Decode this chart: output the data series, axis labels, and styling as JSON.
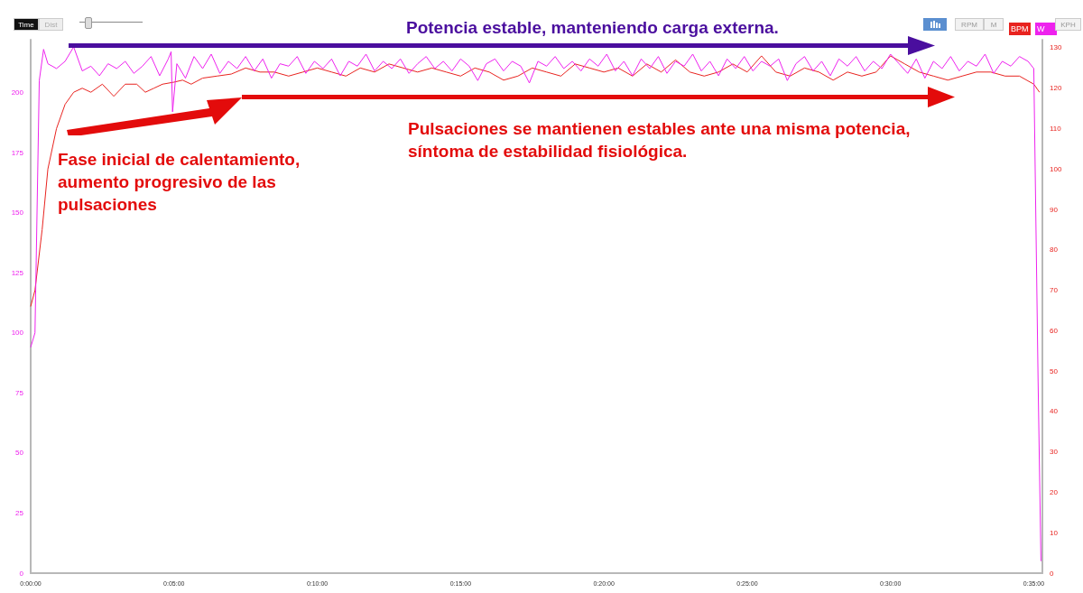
{
  "chart_data": {
    "type": "line",
    "legend": "top right",
    "xlim": [
      0,
      35.3
    ],
    "xticks": [
      {
        "value": 0,
        "label": "0:00:00"
      },
      {
        "value": 5,
        "label": "0:05:00"
      },
      {
        "value": 10,
        "label": "0:10:00"
      },
      {
        "value": 15,
        "label": "0:15:00"
      },
      {
        "value": 20,
        "label": "0:20:00"
      },
      {
        "value": 25,
        "label": "0:25:00"
      },
      {
        "value": 30,
        "label": "0:30:00"
      },
      {
        "value": 35,
        "label": "0:35:00"
      }
    ],
    "ylim": [
      0,
      222
    ],
    "yticks": [
      0,
      25,
      50,
      75,
      100,
      125,
      150,
      175,
      200
    ],
    "y2lim": [
      0,
      132
    ],
    "y2ticks": [
      0,
      10,
      20,
      30,
      40,
      50,
      60,
      70,
      80,
      90,
      100,
      110,
      120,
      130
    ],
    "series": [
      {
        "name": "BPM",
        "color": "#e8231f",
        "axis": "y2",
        "x": [
          0,
          0.15,
          0.4,
          0.6,
          0.9,
          1.2,
          1.5,
          1.8,
          2.1,
          2.5,
          2.9,
          3.3,
          3.7,
          4.0,
          4.3,
          4.6,
          5.0,
          5.3,
          5.6,
          6.0,
          6.5,
          7.0,
          7.5,
          8.0,
          8.5,
          9.0,
          9.5,
          10,
          10.5,
          11,
          11.5,
          12,
          12.5,
          13,
          13.5,
          14,
          14.5,
          15,
          15.5,
          16,
          16.5,
          17,
          17.5,
          18,
          18.5,
          19,
          19.5,
          20,
          20.5,
          21,
          21.5,
          22,
          22.5,
          23,
          23.5,
          24,
          24.5,
          25,
          25.5,
          26,
          26.5,
          27,
          27.5,
          28,
          28.5,
          29,
          29.5,
          30,
          30.5,
          31,
          31.5,
          32,
          32.5,
          33,
          33.5,
          34,
          34.5,
          35,
          35.2
        ],
        "values": [
          66,
          70,
          85,
          100,
          110,
          116,
          119,
          120,
          119,
          121,
          118,
          121,
          121,
          119,
          120,
          121,
          121.5,
          122,
          121,
          122.5,
          123,
          123.5,
          125,
          124,
          124,
          123,
          124,
          125,
          124,
          123,
          125,
          124,
          126,
          125,
          124,
          125,
          124,
          123,
          125,
          124,
          122,
          123,
          125,
          124,
          123,
          126,
          125,
          124,
          125,
          123,
          126,
          124,
          127,
          124,
          123,
          124,
          126,
          124,
          128,
          124,
          123,
          125,
          124,
          122,
          124,
          123,
          124,
          128,
          126,
          124,
          123,
          122,
          123,
          124,
          124,
          123,
          123,
          121,
          119
        ]
      },
      {
        "name": "W",
        "color": "#ee22ee",
        "x": [
          0,
          0.15,
          0.3,
          0.45,
          0.6,
          0.9,
          1.2,
          1.5,
          1.8,
          2.1,
          2.4,
          2.7,
          3.0,
          3.3,
          3.6,
          3.9,
          4.2,
          4.5,
          4.8,
          4.9,
          4.95,
          5.1,
          5.4,
          5.7,
          6.0,
          6.3,
          6.6,
          6.9,
          7.2,
          7.5,
          7.8,
          8.1,
          8.4,
          8.7,
          9.0,
          9.3,
          9.6,
          9.9,
          10.2,
          10.5,
          10.8,
          11.1,
          11.4,
          11.7,
          12.0,
          12.3,
          12.6,
          12.9,
          13.2,
          13.5,
          13.8,
          14.1,
          14.4,
          14.7,
          15.0,
          15.3,
          15.6,
          15.9,
          16.2,
          16.5,
          16.8,
          17.1,
          17.4,
          17.7,
          18.0,
          18.3,
          18.6,
          18.9,
          19.2,
          19.5,
          19.8,
          20.1,
          20.4,
          20.7,
          21.0,
          21.3,
          21.6,
          21.9,
          22.2,
          22.5,
          22.8,
          23.1,
          23.4,
          23.7,
          24.0,
          24.3,
          24.6,
          24.9,
          25.2,
          25.5,
          25.8,
          26.1,
          26.4,
          26.7,
          27.0,
          27.3,
          27.6,
          27.9,
          28.2,
          28.5,
          28.8,
          29.1,
          29.4,
          29.7,
          30.0,
          30.3,
          30.6,
          30.9,
          31.2,
          31.5,
          31.8,
          32.1,
          32.4,
          32.7,
          33.0,
          33.3,
          33.6,
          33.9,
          34.2,
          34.5,
          34.8,
          35.0,
          35.15,
          35.25
        ],
        "values": [
          94,
          100,
          205,
          218,
          212,
          210,
          213,
          219,
          209,
          211,
          207,
          212,
          210,
          213,
          208,
          211,
          215,
          207,
          214,
          217,
          192,
          212,
          206,
          215,
          210,
          216,
          208,
          213,
          210,
          215,
          209,
          214,
          206,
          212,
          211,
          215,
          208,
          213,
          210,
          214,
          207,
          213,
          211,
          216,
          209,
          213,
          210,
          214,
          208,
          212,
          215,
          210,
          213,
          209,
          214,
          211,
          205,
          212,
          214,
          209,
          213,
          211,
          204,
          213,
          211,
          215,
          210,
          213,
          209,
          214,
          211,
          216,
          209,
          213,
          207,
          214,
          210,
          215,
          208,
          213,
          211,
          216,
          209,
          213,
          207,
          214,
          210,
          215,
          209,
          213,
          211,
          214,
          205,
          212,
          215,
          209,
          213,
          207,
          214,
          211,
          215,
          209,
          213,
          210,
          216,
          212,
          208,
          214,
          206,
          213,
          210,
          215,
          209,
          213,
          211,
          216,
          208,
          213,
          211,
          215,
          213,
          210,
          80,
          5
        ]
      }
    ],
    "annotations": [
      "Time",
      "Dist",
      "RPM",
      "M",
      "KPH",
      "Potencia estable, manteniendo carga externa.",
      "Fase inicial de calentamiento, aumento progresivo de las pulsaciones",
      "Pulsaciones se mantienen estables ante una misma potencia, síntoma de estabilidad fisiológica."
    ]
  }
}
